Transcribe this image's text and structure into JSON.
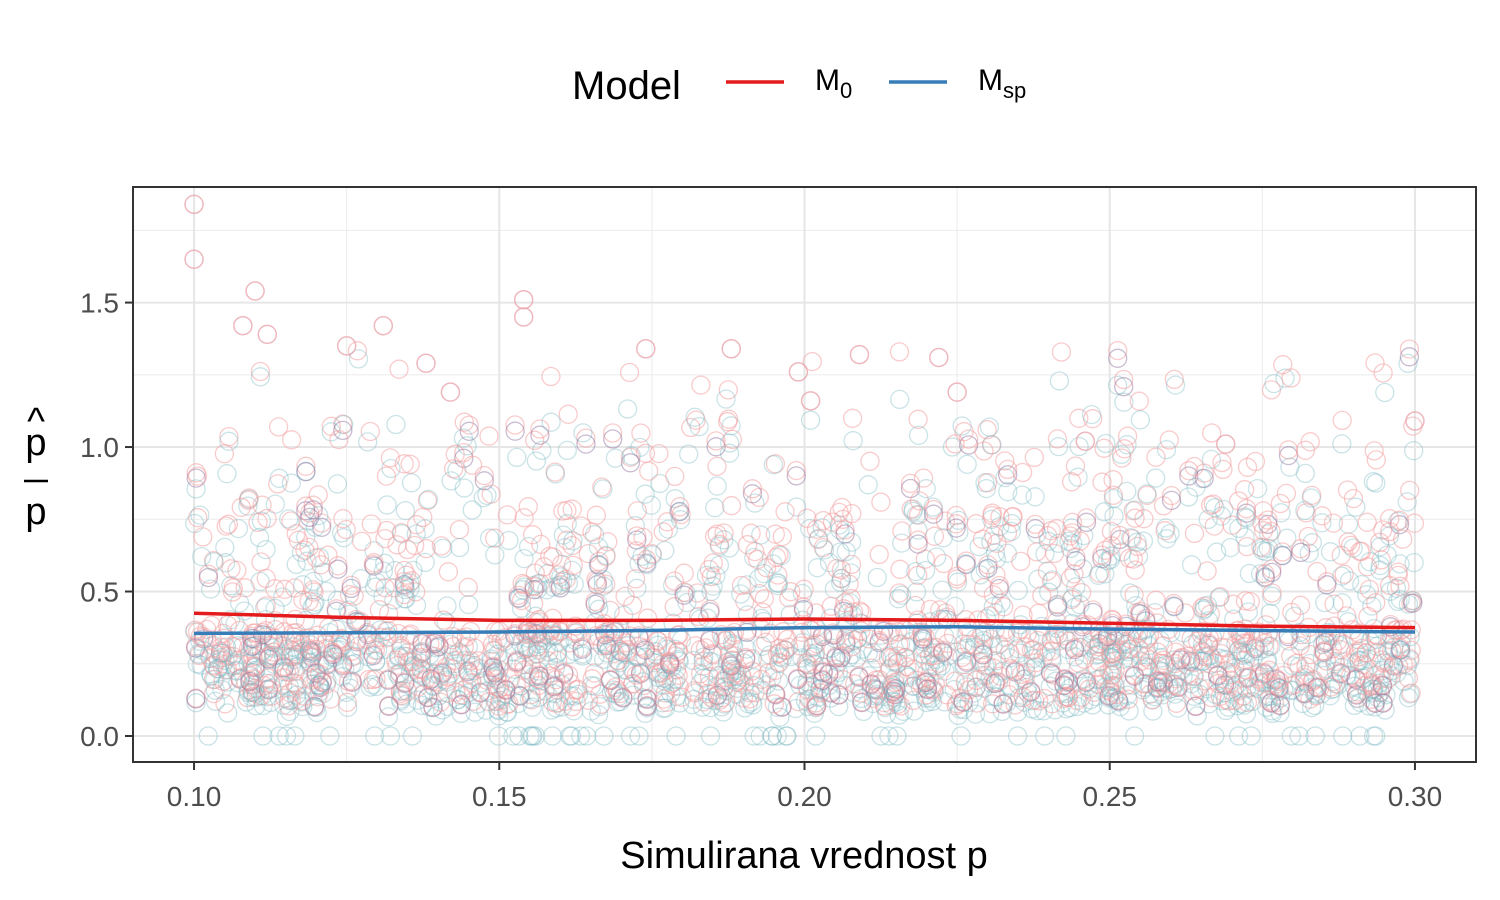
{
  "chart_data": {
    "type": "scatter",
    "xlabel": "Simulirana vrednost p",
    "ylabel": {
      "numerator": "p",
      "numerator_hat": "^",
      "denominator": "p"
    },
    "xlim": [
      0.09,
      0.31
    ],
    "ylim": [
      -0.09,
      1.9
    ],
    "x_ticks": [
      0.1,
      0.15,
      0.2,
      0.25,
      0.3
    ],
    "x_tick_labels": [
      "0.10",
      "0.15",
      "0.20",
      "0.25",
      "0.30"
    ],
    "y_ticks": [
      0.0,
      0.5,
      1.0,
      1.5
    ],
    "y_tick_labels": [
      "0.0",
      "0.5",
      "1.0",
      "1.5"
    ],
    "grid": true,
    "legend": {
      "title": "Model",
      "placement": "top",
      "entries": [
        {
          "base": "M",
          "sub": "0",
          "color": "#e41a1c"
        },
        {
          "base": "M",
          "sub": "sp",
          "color": "#377eb8"
        }
      ]
    },
    "series": [
      {
        "key": "M0",
        "color": "#e41a1c",
        "point_color": "#f4a0a3",
        "trend": {
          "x": [
            0.1,
            0.125,
            0.15,
            0.175,
            0.2,
            0.225,
            0.25,
            0.275,
            0.3
          ],
          "y": [
            0.425,
            0.41,
            0.4,
            0.4,
            0.405,
            0.4,
            0.39,
            0.38,
            0.375
          ]
        }
      },
      {
        "key": "Msp",
        "color": "#377eb8",
        "point_color": "#7ab8c2",
        "trend": {
          "x": [
            0.1,
            0.125,
            0.15,
            0.175,
            0.2,
            0.225,
            0.25,
            0.275,
            0.3
          ],
          "y": [
            0.355,
            0.357,
            0.36,
            0.365,
            0.375,
            0.378,
            0.37,
            0.365,
            0.36
          ]
        }
      }
    ],
    "highlight_points": [
      {
        "x": 0.1,
        "y": 1.84
      },
      {
        "x": 0.1,
        "y": 1.65
      },
      {
        "x": 0.11,
        "y": 1.54
      },
      {
        "x": 0.108,
        "y": 1.42
      },
      {
        "x": 0.112,
        "y": 1.39
      },
      {
        "x": 0.131,
        "y": 1.42
      },
      {
        "x": 0.125,
        "y": 1.35
      },
      {
        "x": 0.154,
        "y": 1.51
      },
      {
        "x": 0.154,
        "y": 1.45
      },
      {
        "x": 0.138,
        "y": 1.29
      },
      {
        "x": 0.142,
        "y": 1.19
      },
      {
        "x": 0.174,
        "y": 1.34
      },
      {
        "x": 0.188,
        "y": 1.34
      },
      {
        "x": 0.209,
        "y": 1.32
      },
      {
        "x": 0.222,
        "y": 1.31
      },
      {
        "x": 0.199,
        "y": 1.26
      },
      {
        "x": 0.225,
        "y": 1.19
      },
      {
        "x": 0.201,
        "y": 1.16
      },
      {
        "x": 0.246,
        "y": 1.02
      },
      {
        "x": 0.3,
        "y": 1.09
      },
      {
        "x": 0.269,
        "y": 1.01
      }
    ],
    "random_seed": 1337,
    "points_per_series": 1300
  }
}
